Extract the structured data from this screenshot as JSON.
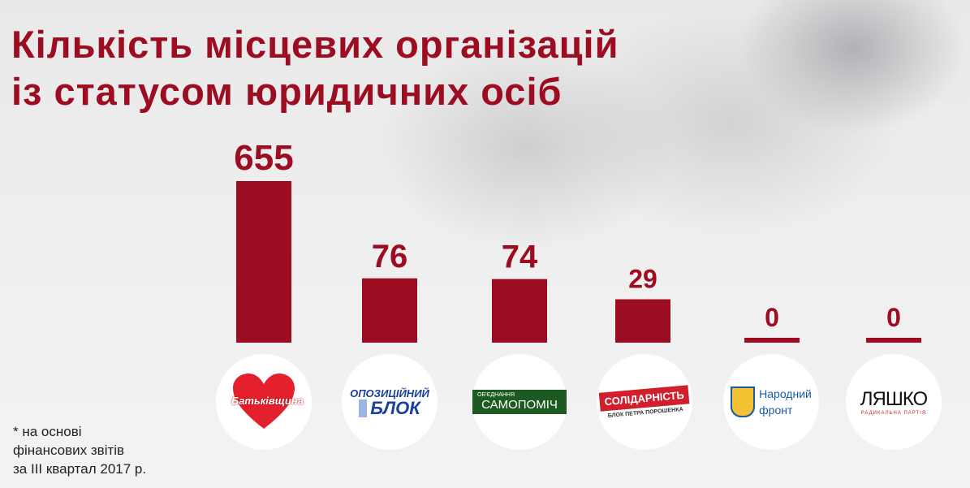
{
  "title": {
    "line1": "Кількість місцевих організацій",
    "line2": "із статусом юридичних осіб"
  },
  "footnote": {
    "line1": "* на основі",
    "line2": "фінансових звітів",
    "line3": "за III квартал 2017 р."
  },
  "colors": {
    "bar": "#9c0d22",
    "title": "#9c0d22"
  },
  "chart_data": {
    "type": "bar",
    "title": "Кількість місцевих організацій із статусом юридичних осіб",
    "categories": [
      "Батьківщина",
      "Опозиційний блок",
      "Об'єднання Самопоміч",
      "Солідарність. Блок Петра Порошенка",
      "Народний фронт",
      "Ляшко. Радикальна партія"
    ],
    "values": [
      655,
      76,
      74,
      29,
      0,
      0
    ],
    "value_labels": [
      "655",
      "76",
      "74",
      "29",
      "0",
      "0"
    ],
    "grid": false
  },
  "logos": [
    {
      "text": "Батьківщина",
      "icon": "heart-icon",
      "color": "#e3202b"
    },
    {
      "text1": "ОПОЗИЦІЙНИЙ",
      "text2": "БЛОК",
      "color": "#1a3f9c"
    },
    {
      "text1": "ОБ'ЄДНАННЯ",
      "text2": "САМОПОМІЧ",
      "color": "#1d5a22"
    },
    {
      "text1": "СОЛІДАРНІСТЬ",
      "text2": "БЛОК ПЕТРА ПОРОШЕНКА",
      "color": "#d0202e"
    },
    {
      "text1": "Народний",
      "text2": "фронт",
      "icon": "shield-icon",
      "color": "#1a5aa8"
    },
    {
      "text1": "ЛЯШКО",
      "text2": "РАДИКАЛЬНА ПАРТІЯ",
      "color": "#d0202e"
    }
  ]
}
